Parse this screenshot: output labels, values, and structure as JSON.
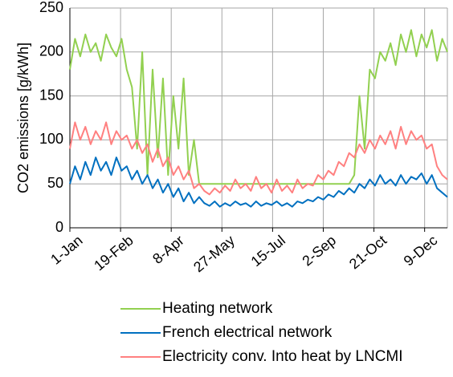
{
  "chart_data": {
    "type": "line",
    "ylabel": "CO2 emissions [g/kWh]",
    "x": [
      0,
      5,
      10,
      15,
      20,
      25,
      30,
      35,
      40,
      45,
      50,
      55,
      60,
      65,
      70,
      75,
      80,
      85,
      90,
      95,
      100,
      105,
      110,
      115,
      120,
      125,
      130,
      135,
      140,
      145,
      150,
      155,
      160,
      165,
      170,
      175,
      180,
      185,
      190,
      195,
      200,
      205,
      210,
      215,
      220,
      225,
      230,
      235,
      240,
      245,
      250,
      255,
      260,
      265,
      270,
      275,
      280,
      285,
      290,
      295,
      300,
      305,
      310,
      315,
      320,
      325,
      330,
      335,
      340,
      345,
      350,
      355,
      360,
      365
    ],
    "xlim": [
      0,
      365
    ],
    "xticks": [
      {
        "value": 0,
        "label": "1-Jan"
      },
      {
        "value": 49,
        "label": "19-Feb"
      },
      {
        "value": 98,
        "label": "8-Apr"
      },
      {
        "value": 147,
        "label": "27-May"
      },
      {
        "value": 196,
        "label": "15-Jul"
      },
      {
        "value": 245,
        "label": "2-Sep"
      },
      {
        "value": 294,
        "label": "21-Oct"
      },
      {
        "value": 343,
        "label": "9-Dec"
      }
    ],
    "ylim": [
      0,
      250
    ],
    "yticks": [
      0,
      50,
      100,
      150,
      200,
      250
    ],
    "grid": true,
    "legend": "bottom",
    "series": [
      {
        "name": "Heating network",
        "color": "#92d050",
        "values": [
          180,
          215,
          195,
          220,
          200,
          210,
          190,
          220,
          205,
          195,
          215,
          180,
          160,
          90,
          200,
          60,
          180,
          80,
          170,
          60,
          150,
          90,
          170,
          60,
          100,
          50,
          50,
          50,
          50,
          50,
          50,
          50,
          50,
          50,
          50,
          50,
          50,
          50,
          50,
          50,
          50,
          50,
          50,
          50,
          50,
          50,
          50,
          50,
          50,
          50,
          50,
          50,
          50,
          50,
          50,
          60,
          150,
          90,
          180,
          170,
          200,
          190,
          210,
          185,
          220,
          200,
          225,
          195,
          220,
          205,
          225,
          190,
          215,
          200
        ]
      },
      {
        "name": "French electrical network",
        "color": "#0070c0",
        "values": [
          50,
          70,
          55,
          75,
          60,
          80,
          65,
          75,
          60,
          80,
          65,
          70,
          55,
          65,
          50,
          60,
          45,
          55,
          40,
          50,
          35,
          45,
          30,
          40,
          28,
          35,
          28,
          25,
          30,
          24,
          28,
          25,
          30,
          26,
          28,
          24,
          30,
          25,
          28,
          26,
          30,
          25,
          28,
          24,
          30,
          28,
          32,
          30,
          35,
          32,
          38,
          35,
          42,
          38,
          45,
          40,
          50,
          45,
          55,
          48,
          60,
          50,
          55,
          48,
          60,
          50,
          58,
          55,
          62,
          50,
          60,
          45,
          40,
          35
        ]
      },
      {
        "name": "Electricity conv. Into heat by LNCMI",
        "color": "#ff8080",
        "values": [
          90,
          120,
          100,
          115,
          95,
          110,
          100,
          120,
          95,
          110,
          100,
          105,
          90,
          100,
          85,
          95,
          75,
          90,
          70,
          80,
          60,
          70,
          55,
          65,
          45,
          50,
          42,
          38,
          45,
          40,
          48,
          42,
          55,
          45,
          50,
          42,
          58,
          45,
          50,
          40,
          55,
          42,
          48,
          40,
          55,
          45,
          50,
          48,
          60,
          55,
          65,
          60,
          75,
          70,
          85,
          80,
          95,
          85,
          100,
          90,
          105,
          95,
          110,
          90,
          115,
          95,
          110,
          100,
          105,
          90,
          95,
          70,
          60,
          55
        ]
      }
    ]
  }
}
